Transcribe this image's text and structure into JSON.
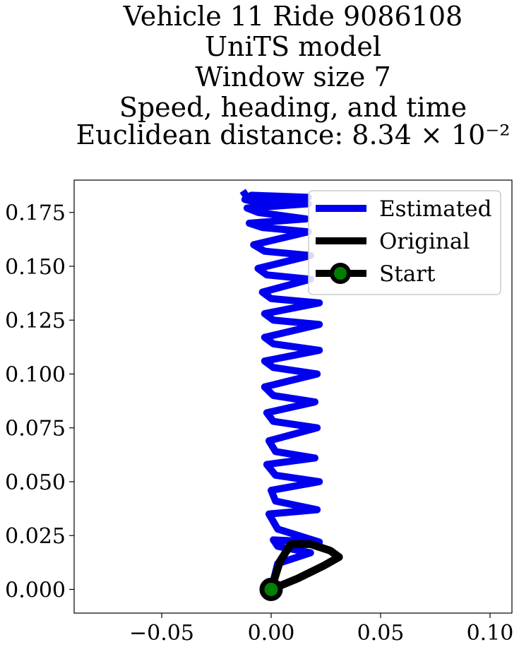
{
  "chart_data": {
    "type": "line",
    "title_lines": [
      "Vehicle 11 Ride 9086108",
      "UniTS model",
      "Window size 7",
      "Speed, heading, and time",
      "Euclidean distance: 8.34 × 10⁻²"
    ],
    "xlabel": "",
    "ylabel": "",
    "xlim": [
      -0.09,
      0.11
    ],
    "ylim": [
      -0.011,
      0.19
    ],
    "x_ticks": [
      -0.05,
      0.0,
      0.05,
      0.1
    ],
    "x_tick_labels": [
      "−0.05",
      "0.00",
      "0.05",
      "0.10"
    ],
    "y_ticks": [
      0.0,
      0.025,
      0.05,
      0.075,
      0.1,
      0.125,
      0.15,
      0.175
    ],
    "y_tick_labels": [
      "0.000",
      "0.025",
      "0.050",
      "0.075",
      "0.100",
      "0.125",
      "0.150",
      "0.175"
    ],
    "grid": false,
    "legend_position": "top-right",
    "series": [
      {
        "name": "Estimated",
        "color": "#0000ee",
        "x": [
          0.0,
          0.003,
          0.018,
          0.003,
          0.001,
          0.022,
          0.003,
          -0.001,
          0.021,
          0.002,
          0.0,
          0.022,
          0.002,
          -0.002,
          0.02,
          0.002,
          -0.001,
          0.021,
          0.001,
          -0.002,
          0.02,
          0.001,
          -0.003,
          0.021,
          0.001,
          -0.003,
          0.022,
          0.001,
          -0.003,
          0.022,
          0.001,
          -0.003,
          0.022,
          0.0,
          -0.004,
          0.018,
          -0.002,
          -0.006,
          0.018,
          -0.003,
          -0.008,
          0.017,
          -0.004,
          -0.01,
          0.016,
          -0.006,
          -0.011,
          0.017,
          -0.008,
          -0.012,
          0.017,
          -0.009,
          -0.011,
          -0.013
        ],
        "y": [
          0.0,
          0.012,
          0.017,
          0.02,
          0.023,
          0.022,
          0.028,
          0.035,
          0.037,
          0.041,
          0.046,
          0.05,
          0.053,
          0.058,
          0.061,
          0.064,
          0.069,
          0.075,
          0.078,
          0.082,
          0.087,
          0.09,
          0.094,
          0.1,
          0.103,
          0.106,
          0.111,
          0.114,
          0.117,
          0.123,
          0.125,
          0.128,
          0.133,
          0.135,
          0.138,
          0.144,
          0.146,
          0.149,
          0.155,
          0.157,
          0.16,
          0.166,
          0.168,
          0.17,
          0.172,
          0.175,
          0.177,
          0.179,
          0.18,
          0.181,
          0.182,
          0.183,
          0.182,
          0.185
        ]
      },
      {
        "name": "Original",
        "color": "#000000",
        "x": [
          0.0,
          0.004,
          0.009,
          0.018,
          0.027,
          0.031,
          0.024,
          0.012,
          0.0
        ],
        "y": [
          0.0,
          0.013,
          0.021,
          0.021,
          0.018,
          0.015,
          0.011,
          0.005,
          0.0
        ]
      },
      {
        "name": "Start",
        "color": "#000000",
        "marker_color": "#008000",
        "x": [
          0.0
        ],
        "y": [
          0.0
        ]
      }
    ]
  }
}
